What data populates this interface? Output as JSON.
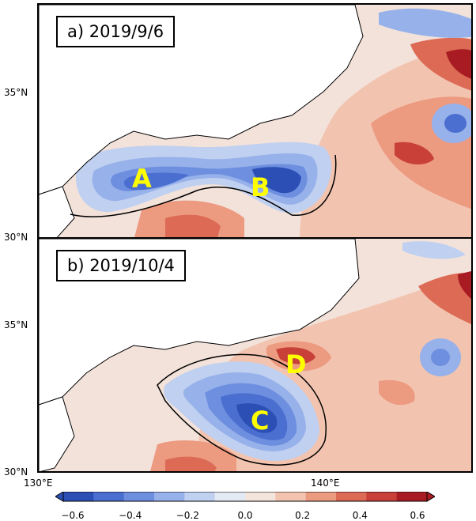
{
  "panels": [
    {
      "title": "a) 2019/9/6",
      "labels": [
        "A",
        "B"
      ]
    },
    {
      "title": "b) 2019/10/4",
      "labels": [
        "C",
        "D"
      ]
    }
  ],
  "y_ticks": [
    "35°N",
    "30°N"
  ],
  "x_ticks": [
    "130°E",
    "140°E"
  ],
  "colorbar": {
    "ticks": [
      "−0.6",
      "−0.4",
      "−0.2",
      "0.0",
      "0.2",
      "0.4",
      "0.6"
    ],
    "min": -0.6,
    "max": 0.6,
    "colors": [
      "#2b4fb5",
      "#4a6fd0",
      "#6e8fdf",
      "#97b1ea",
      "#c0d0f0",
      "#e4eaf3",
      "#f3e4dc",
      "#f2c4b0",
      "#ec9a80",
      "#dc6a55",
      "#c84038",
      "#a81b22"
    ]
  },
  "colors": {
    "land": "#ffffff",
    "coast": "#000000",
    "highlight_label": "#ffff00"
  }
}
